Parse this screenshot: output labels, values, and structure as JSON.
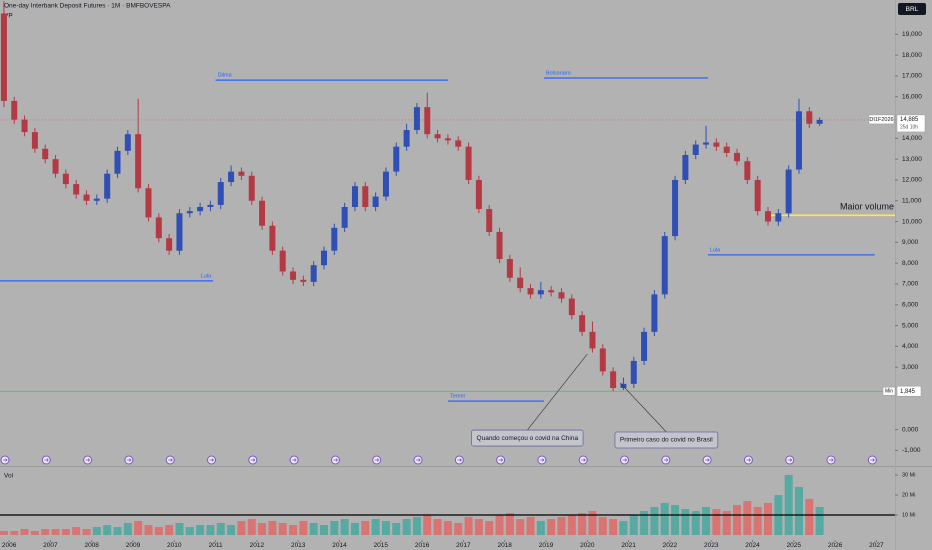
{
  "header": {
    "title": "One-day Interbank Deposit Futures · 1M · BMFBOVESPA",
    "indicator": "VP",
    "currency": "BRL"
  },
  "chart_data": [
    {
      "type": "candlestick",
      "up_color": "#2f4fb5",
      "down_color": "#b33a45",
      "xlim": [
        2005.78,
        2027.45
      ],
      "xticks": [
        2006,
        2007,
        2008,
        2009,
        2010,
        2011,
        2012,
        2013,
        2014,
        2015,
        2016,
        2017,
        2018,
        2019,
        2020,
        2021,
        2022,
        2023,
        2024,
        2025,
        2026,
        2027
      ],
      "ylim": [
        -1750,
        20650
      ],
      "yticks": [
        {
          "value": 19000,
          "label": "19,000"
        },
        {
          "value": 18000,
          "label": "18,000"
        },
        {
          "value": 17000,
          "label": "17,000"
        },
        {
          "value": 16000,
          "label": "16,000"
        },
        {
          "value": 14000,
          "label": "14,000"
        },
        {
          "value": 13000,
          "label": "13,000"
        },
        {
          "value": 12000,
          "label": "12,000"
        },
        {
          "value": 11000,
          "label": "11,000"
        },
        {
          "value": 10000,
          "label": "10,000"
        },
        {
          "value": 9000,
          "label": "9,000"
        },
        {
          "value": 8000,
          "label": "8,000"
        },
        {
          "value": 7000,
          "label": "7,000"
        },
        {
          "value": 6000,
          "label": "6,000"
        },
        {
          "value": 5000,
          "label": "5,000"
        },
        {
          "value": 4000,
          "label": "4,000"
        },
        {
          "value": 3000,
          "label": "3,000"
        },
        {
          "value": 0,
          "label": "0,000"
        },
        {
          "value": -1000,
          "label": "-1,000"
        }
      ],
      "x": [
        2005.875,
        2006.125,
        2006.375,
        2006.625,
        2006.875,
        2007.125,
        2007.375,
        2007.625,
        2007.875,
        2008.125,
        2008.375,
        2008.625,
        2008.875,
        2009.125,
        2009.375,
        2009.625,
        2009.875,
        2010.125,
        2010.375,
        2010.625,
        2010.875,
        2011.125,
        2011.375,
        2011.625,
        2011.875,
        2012.125,
        2012.375,
        2012.625,
        2012.875,
        2013.125,
        2013.375,
        2013.625,
        2013.875,
        2014.125,
        2014.375,
        2014.625,
        2014.875,
        2015.125,
        2015.375,
        2015.625,
        2015.875,
        2016.125,
        2016.375,
        2016.625,
        2016.875,
        2017.125,
        2017.375,
        2017.625,
        2017.875,
        2018.125,
        2018.375,
        2018.625,
        2018.875,
        2019.125,
        2019.375,
        2019.625,
        2019.875,
        2020.125,
        2020.375,
        2020.625,
        2020.875,
        2021.125,
        2021.375,
        2021.625,
        2021.875,
        2022.125,
        2022.375,
        2022.625,
        2022.875,
        2023.125,
        2023.375,
        2023.625,
        2023.875,
        2024.125,
        2024.375,
        2024.625,
        2024.875,
        2025.125,
        2025.375,
        2025.625
      ],
      "open": [
        20000,
        15800,
        14900,
        14300,
        13500,
        13000,
        12300,
        11800,
        11300,
        11000,
        11100,
        12300,
        13400,
        14200,
        11600,
        10200,
        9200,
        8600,
        10400,
        10500,
        10700,
        10800,
        11900,
        12400,
        12200,
        11000,
        9800,
        8600,
        7600,
        7200,
        7100,
        7900,
        8600,
        9700,
        10700,
        11700,
        10700,
        11200,
        12400,
        13600,
        14400,
        15500,
        14200,
        14000,
        13900,
        13600,
        12000,
        10600,
        9500,
        8200,
        7300,
        6800,
        6500,
        6700,
        6600,
        6300,
        5500,
        4700,
        3900,
        2800,
        2000,
        2200,
        3300,
        4700,
        6500,
        9300,
        12000,
        13200,
        13700,
        13800,
        13600,
        13300,
        12900,
        12000,
        10500,
        10000,
        10400,
        12500,
        15300,
        14700
      ],
      "high": [
        20600,
        16000,
        15100,
        14500,
        13700,
        13200,
        12500,
        12000,
        11500,
        11300,
        12500,
        13600,
        14400,
        15900,
        11800,
        10400,
        9400,
        10600,
        10700,
        10900,
        11000,
        12100,
        12700,
        12600,
        12400,
        11200,
        10000,
        8800,
        7800,
        7400,
        8100,
        8800,
        9900,
        10900,
        11900,
        11900,
        11400,
        12600,
        13800,
        14700,
        15700,
        16200,
        14400,
        14200,
        14100,
        13800,
        12200,
        10800,
        9700,
        8400,
        7800,
        7000,
        7100,
        6900,
        6800,
        6500,
        5700,
        5200,
        4100,
        3000,
        2500,
        3500,
        4900,
        6700,
        9500,
        12200,
        13400,
        13900,
        14600,
        14000,
        13800,
        13500,
        13100,
        12200,
        10700,
        10600,
        12700,
        15900,
        15500,
        15000
      ],
      "low": [
        15500,
        14700,
        14100,
        13300,
        12800,
        12100,
        11600,
        11100,
        10800,
        10800,
        10900,
        12100,
        13200,
        11400,
        10000,
        9000,
        8400,
        8400,
        10200,
        10300,
        10500,
        10600,
        11700,
        12000,
        10800,
        9600,
        8400,
        7400,
        7000,
        6900,
        6900,
        7700,
        8400,
        9500,
        10500,
        10500,
        10500,
        11000,
        12200,
        13400,
        14200,
        14000,
        13800,
        13700,
        13400,
        11800,
        10400,
        9300,
        8000,
        7100,
        6600,
        6300,
        6300,
        6400,
        6100,
        5300,
        4500,
        3700,
        2600,
        1845,
        1900,
        2000,
        3100,
        4500,
        6300,
        9100,
        11800,
        13000,
        13500,
        13400,
        13100,
        12700,
        11800,
        10300,
        9800,
        9800,
        10200,
        12300,
        14500,
        14600
      ],
      "close": [
        15800,
        14900,
        14300,
        13500,
        13000,
        12300,
        11800,
        11300,
        11000,
        11100,
        12300,
        13400,
        14200,
        11600,
        10200,
        9200,
        8600,
        10400,
        10500,
        10700,
        10800,
        11900,
        12400,
        12200,
        11000,
        9800,
        8600,
        7600,
        7200,
        7100,
        7900,
        8600,
        9700,
        10700,
        11700,
        10700,
        11200,
        12400,
        13600,
        14400,
        15500,
        14200,
        14000,
        13900,
        13600,
        12000,
        10600,
        9500,
        8200,
        7300,
        6800,
        6500,
        6700,
        6600,
        6300,
        5500,
        4700,
        3900,
        2800,
        2000,
        2200,
        3300,
        4700,
        6500,
        9300,
        12000,
        13200,
        13700,
        13800,
        13600,
        13300,
        12900,
        12000,
        10500,
        10000,
        10400,
        12500,
        15300,
        14700,
        14885
      ],
      "annotations": [
        {
          "label": "Dilma",
          "x": [
            2011.0,
            2016.63
          ],
          "y": 16800,
          "color": "#2962ff"
        },
        {
          "label": "Bolsonaro",
          "x": [
            2018.95,
            2022.92
          ],
          "y": 16900,
          "color": "#2962ff"
        },
        {
          "label": "Lula",
          "x": [
            2005.78,
            2010.94
          ],
          "y": 7150,
          "color": "#2962ff"
        },
        {
          "label": "Temer",
          "x": [
            2016.63,
            2018.95
          ],
          "y": 1370,
          "color": "#2962ff"
        },
        {
          "label": "Lula",
          "x": [
            2022.92,
            2026.96
          ],
          "y": 8400,
          "color": "#2962ff"
        }
      ],
      "highlight": {
        "label": "Maior volume",
        "x": [
          2024.42,
          2027.45
        ],
        "y": 10300,
        "color": "#ffeb3b"
      },
      "callouts": [
        {
          "text": "Quando começou o covid na China",
          "x": 2020.0,
          "y": 3630
        },
        {
          "text": "Primeiro caso do covid no Brasil",
          "x": 2020.8,
          "y": 2240
        }
      ],
      "last_price": {
        "value": 14885,
        "label": "14,885",
        "symbol": "DI1F2026",
        "countdown": "25d 10h",
        "color": "#e05260"
      },
      "min_price": {
        "value": 1845,
        "label": "1,845",
        "text": "Min",
        "color": "#4caf50"
      }
    },
    {
      "type": "bar",
      "title": "Vol",
      "up_color": "#26a69a",
      "down_color": "#ef5350",
      "ylim": [
        -2.5,
        32.5
      ],
      "yticks": [
        {
          "value": 30,
          "label": "30 Mi"
        },
        {
          "value": 20,
          "label": "20 Mi"
        },
        {
          "value": 10,
          "label": "10 Mi"
        }
      ],
      "reference_line": 10,
      "values": [
        2,
        2,
        3,
        2,
        3,
        3,
        3,
        4,
        3,
        4,
        5,
        4,
        6,
        7,
        5,
        4,
        5,
        6,
        4,
        5,
        5,
        6,
        5,
        7,
        8,
        6,
        7,
        6,
        5,
        7,
        6,
        5,
        7,
        8,
        6,
        7,
        8,
        7,
        6,
        8,
        9,
        10,
        8,
        7,
        6,
        9,
        8,
        7,
        10,
        11,
        8,
        9,
        7,
        8,
        9,
        10,
        11,
        12,
        9,
        8,
        7,
        10,
        12,
        14,
        16,
        15,
        13,
        12,
        14,
        13,
        12,
        15,
        17,
        14,
        16,
        20,
        30,
        24,
        18,
        14
      ]
    }
  ]
}
